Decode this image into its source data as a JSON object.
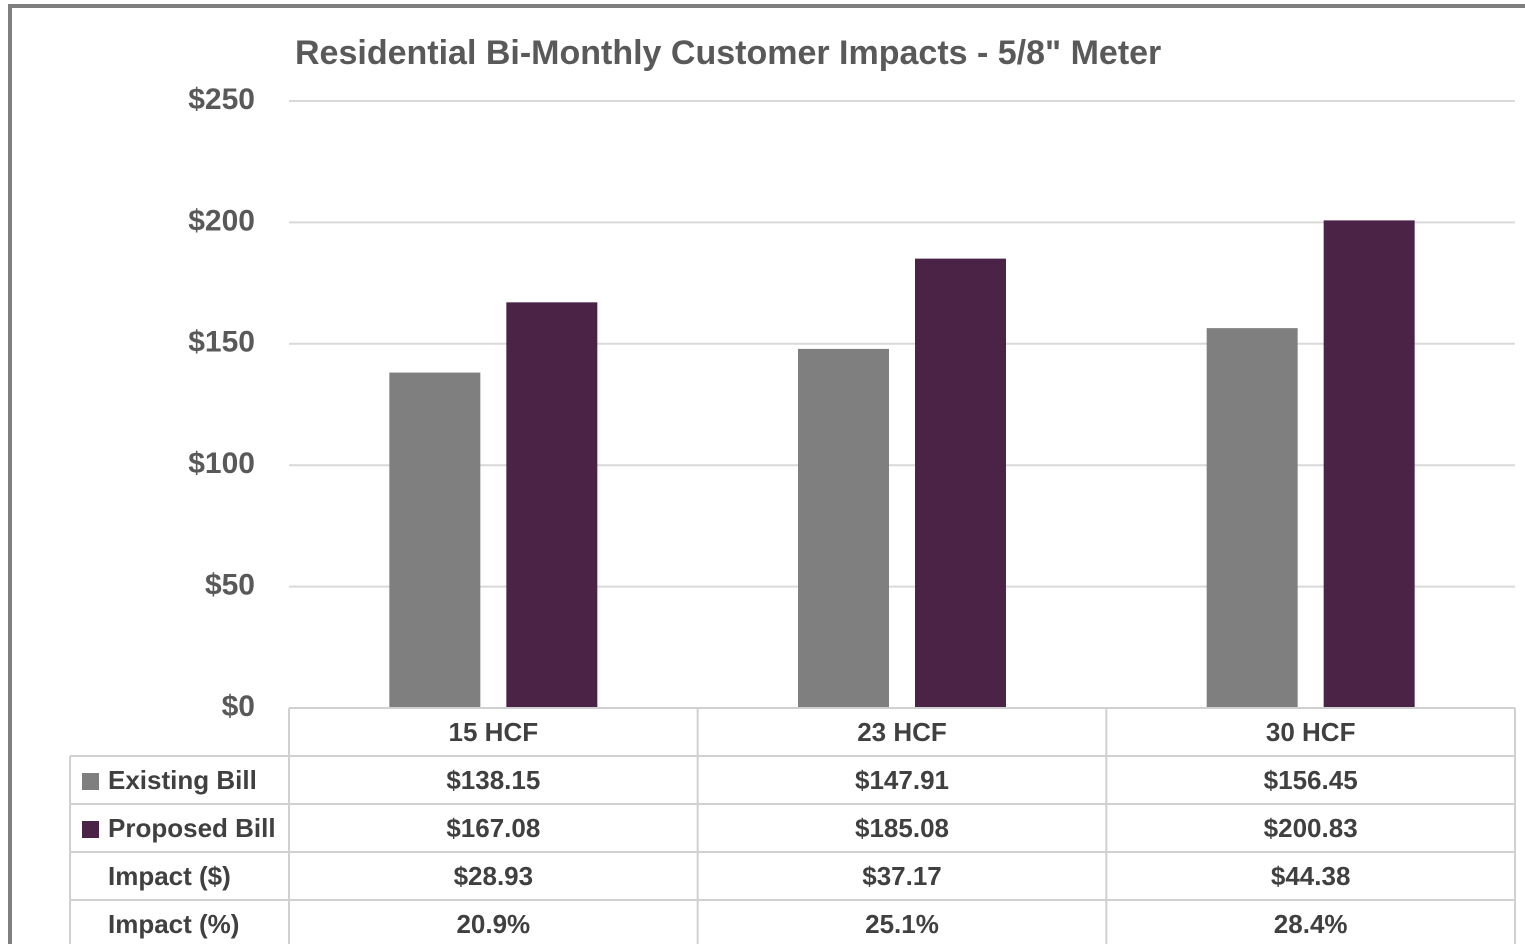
{
  "chart_data": {
    "type": "bar",
    "title": "Residential Bi-Monthly Customer Impacts - 5/8\" Meter",
    "categories": [
      "15 HCF",
      "23 HCF",
      "30 HCF"
    ],
    "series": [
      {
        "name": "Existing Bill",
        "color": "#7f7f7f",
        "values": [
          138.15,
          147.91,
          156.45
        ],
        "value_labels": [
          "$138.15",
          "$147.91",
          "$156.45"
        ]
      },
      {
        "name": "Proposed Bill",
        "color": "#4a2347",
        "values": [
          167.08,
          185.08,
          200.83
        ],
        "value_labels": [
          "$167.08",
          "$185.08",
          "$200.83"
        ]
      }
    ],
    "table_rows": [
      {
        "name": "Impact ($)",
        "cells": [
          "$28.93",
          "$37.17",
          "$44.38"
        ]
      },
      {
        "name": "Impact (%)",
        "cells": [
          "20.9%",
          "25.1%",
          "28.4%"
        ]
      }
    ],
    "ylim": [
      0,
      250
    ],
    "yticks": [
      {
        "value": 0,
        "label": "$0"
      },
      {
        "value": 50,
        "label": "$50"
      },
      {
        "value": 100,
        "label": "$100"
      },
      {
        "value": 150,
        "label": "$150"
      },
      {
        "value": 200,
        "label": "$200"
      },
      {
        "value": 250,
        "label": "$250"
      }
    ],
    "grid": true
  }
}
